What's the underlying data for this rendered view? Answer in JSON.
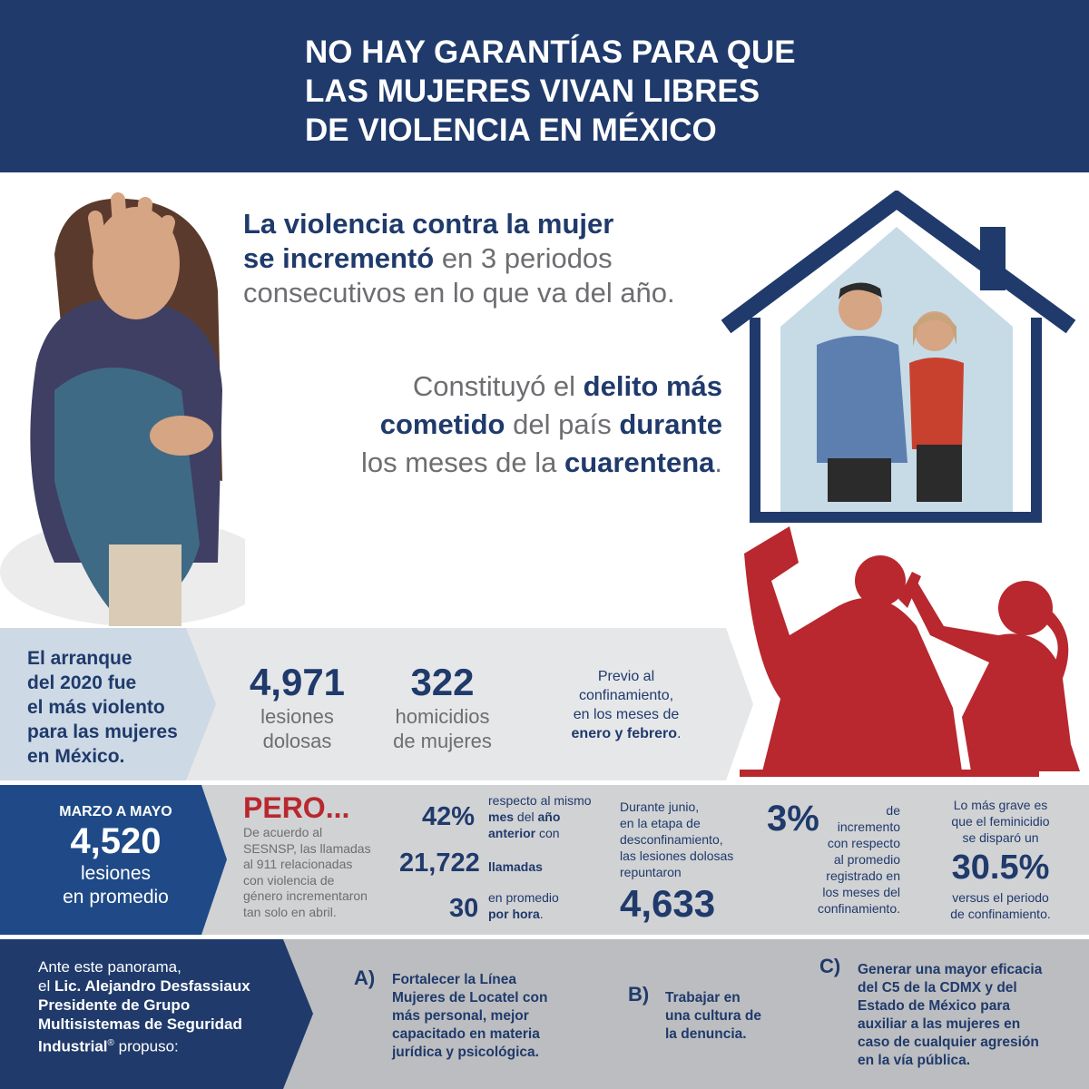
{
  "header": {
    "title_lines": [
      "NO HAY GARANTÍAS PARA QUE",
      "LAS MUJERES VIVAN LIBRES",
      "DE VIOLENCIA EN MÉXICO"
    ]
  },
  "intro": {
    "p1": {
      "b1": "La violencia contra la mujer",
      "b2": "se incrementó",
      "t1": " en 3 periodos",
      "t2": "consecutivos en lo que va del año."
    },
    "p2": {
      "t1": "Constituyó el ",
      "b1": "delito más",
      "b2": "cometido",
      "t2": " del país ",
      "b3": "durante",
      "t3": "los meses de la ",
      "b4": "cuarentena",
      "t4": "."
    }
  },
  "start2020": {
    "lead": [
      "El arranque",
      "del 2020 fue",
      "el más violento",
      "para las mujeres",
      "en México."
    ],
    "stat1": {
      "value": "4,971",
      "label": [
        "lesiones",
        "dolosas"
      ]
    },
    "stat2": {
      "value": "322",
      "label": [
        "homicidios",
        "de mujeres"
      ]
    },
    "note": {
      "l1": "Previo al",
      "l2": "confinamiento,",
      "l3": "en los meses de",
      "b": "enero y febrero",
      "end": "."
    }
  },
  "march_may": {
    "heading": "MARZO A MAYO",
    "value": "4,520",
    "label": [
      "lesiones",
      "en promedio"
    ],
    "pero": "PERO...",
    "pero_text": [
      "De acuerdo al",
      "SESNSP, las llamadas",
      "al 911 relacionadas",
      "con violencia de",
      "género incrementaron",
      "tan solo en abril."
    ],
    "pct": "42%",
    "pct_text": {
      "l1": "respecto al mismo",
      "b1": "mes",
      "l2": " del ",
      "b2": "año",
      "b3": "anterior",
      "l3": " con"
    },
    "calls": "21,722",
    "calls_label": "llamadas",
    "per_hour": "30",
    "per_hour_text": {
      "l1": "en promedio",
      "b": "por hora",
      "end": "."
    },
    "june_text": [
      "Durante junio,",
      "en la etapa de",
      "desconfinamiento,",
      "las lesiones dolosas",
      "repuntaron"
    ],
    "june_value": "4,633",
    "inc": "3%",
    "inc_text": [
      "de",
      "incremento",
      "con respecto",
      "al promedio",
      "registrado en",
      "los meses del",
      "confinamiento."
    ],
    "fem_text": [
      "Lo más grave es",
      "que el feminicidio",
      "se disparó un"
    ],
    "fem_value": "30.5%",
    "fem_after": [
      "versus el periodo",
      "de confinamiento."
    ]
  },
  "proposal": {
    "lead": {
      "l1": "Ante este panorama,",
      "l2": "el ",
      "b1": "Lic. Alejandro Desfassiaux",
      "b2": "Presidente de Grupo",
      "b3": "Multisistemas de Seguridad",
      "b4": "Industrial",
      "reg": "®",
      "l3": " propuso:"
    },
    "items": [
      {
        "letter": "A)",
        "lines": [
          "Fortalecer la Línea",
          "Mujeres de Locatel con",
          "más personal, mejor",
          "capacitado en materia",
          "jurídica y psicológica."
        ]
      },
      {
        "letter": "B)",
        "lines": [
          "Trabajar en",
          "una cultura de",
          "la denuncia."
        ]
      },
      {
        "letter": "C)",
        "lines": [
          "Generar una mayor eficacia",
          "del C5 de la CDMX y del",
          "Estado de México para",
          "auxiliar a las mujeres en",
          "caso de cualquier agresión",
          "en la vía pública."
        ]
      }
    ]
  },
  "colors": {
    "navy": "#1f3a6b",
    "blue": "#1f4a87",
    "red": "#b8282e",
    "gray_text": "#6d6e71"
  }
}
